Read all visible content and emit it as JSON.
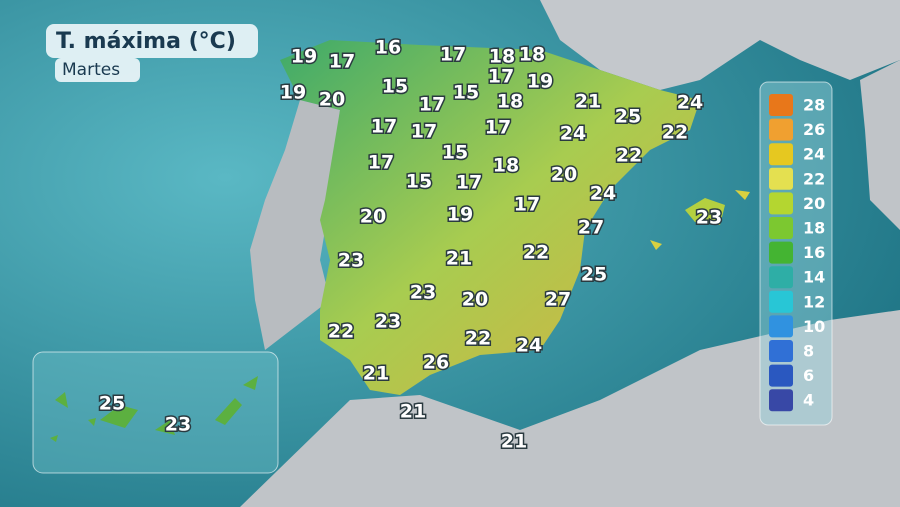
{
  "header": {
    "title": "T. máxima (°C)",
    "subtitle": "Martes"
  },
  "legend": {
    "items": [
      {
        "value": 28,
        "color": "#e8771a"
      },
      {
        "value": 26,
        "color": "#f0a030"
      },
      {
        "value": 24,
        "color": "#e6c820"
      },
      {
        "value": 22,
        "color": "#e4e050"
      },
      {
        "value": 20,
        "color": "#b4d630"
      },
      {
        "value": 18,
        "color": "#7cc830"
      },
      {
        "value": 16,
        "color": "#44b432"
      },
      {
        "value": 14,
        "color": "#2eaea6"
      },
      {
        "value": 12,
        "color": "#28c6d6"
      },
      {
        "value": 10,
        "color": "#3092e0"
      },
      {
        "value": 8,
        "color": "#3070d6"
      },
      {
        "value": 6,
        "color": "#2a58c0"
      },
      {
        "value": 4,
        "color": "#3848a6"
      }
    ]
  },
  "labels": [
    19,
    16,
    17,
    18,
    18,
    17,
    17,
    19,
    19,
    20,
    15,
    17,
    15,
    18,
    21,
    25,
    24,
    22,
    17,
    17,
    17,
    24,
    22,
    15,
    17,
    18,
    20,
    24,
    15,
    17,
    17,
    23,
    20,
    19,
    27,
    23,
    21,
    22,
    25,
    23,
    20,
    27,
    22,
    23,
    22,
    24,
    21,
    26,
    21,
    21,
    25,
    23
  ]
}
